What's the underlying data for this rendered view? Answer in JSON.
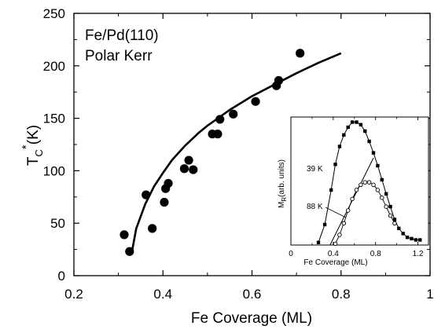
{
  "chart_data": [
    {
      "type": "scatter",
      "annotations": [
        "Fe/Pd(110)",
        "Polar Kerr"
      ],
      "xlabel": "Fe Coverage (ML)",
      "ylabel": "T",
      "ylabel_sub": "C",
      "ylabel_sup": "*",
      "ylabel_unit": "(K)",
      "xlim": [
        0.2,
        1.0
      ],
      "ylim": [
        0,
        250
      ],
      "xticks": [
        0.2,
        0.4,
        0.6,
        0.8,
        1.0
      ],
      "xtick_labels": [
        "0.2",
        "0.4",
        "0.6",
        "0.8",
        "1"
      ],
      "yticks": [
        0,
        50,
        100,
        150,
        200,
        250
      ],
      "ytick_labels": [
        "0",
        "50",
        "100",
        "150",
        "200",
        "250"
      ],
      "grid": false,
      "series": [
        {
          "marker": "filled-circle",
          "x": [
            0.313,
            0.325,
            0.362,
            0.376,
            0.403,
            0.406,
            0.412,
            0.448,
            0.458,
            0.468,
            0.511,
            0.523,
            0.528,
            0.558,
            0.608,
            0.655,
            0.66,
            0.708
          ],
          "y": [
            39,
            23,
            77,
            45,
            70,
            83,
            88,
            102,
            110,
            101,
            135,
            135,
            149,
            154,
            166,
            181,
            186,
            212
          ]
        },
        {
          "type": "line",
          "x": [
            0.33,
            0.34,
            0.36,
            0.38,
            0.4,
            0.42,
            0.45,
            0.48,
            0.5,
            0.55,
            0.6,
            0.65,
            0.7,
            0.75,
            0.8
          ],
          "y": [
            22,
            45,
            68,
            85,
            98,
            110,
            124,
            136,
            143,
            158,
            171,
            182,
            193,
            203,
            212
          ]
        }
      ]
    },
    {
      "type": "scatter",
      "inset": true,
      "xlabel": "Fe Coverage (ML)",
      "ylabel": "M",
      "ylabel_sub": "R",
      "ylabel_unit": "(arb. units)",
      "xlim": [
        0,
        1.3
      ],
      "ylim": [
        0,
        1.0
      ],
      "xticks": [
        0,
        0.4,
        0.8,
        1.2
      ],
      "xtick_labels": [
        "0",
        "0.4",
        "0.8",
        "1.2"
      ],
      "grid": false,
      "series": [
        {
          "name": "39 K",
          "marker": "filled-square",
          "x": [
            0.26,
            0.32,
            0.38,
            0.42,
            0.46,
            0.5,
            0.54,
            0.58,
            0.62,
            0.66,
            0.7,
            0.74,
            0.78,
            0.82,
            0.86,
            0.9,
            0.94,
            0.98,
            1.02,
            1.06,
            1.1,
            1.14,
            1.18,
            1.22
          ],
          "y": [
            0.02,
            0.16,
            0.43,
            0.63,
            0.77,
            0.86,
            0.92,
            0.96,
            0.96,
            0.94,
            0.89,
            0.81,
            0.72,
            0.62,
            0.51,
            0.4,
            0.3,
            0.2,
            0.13,
            0.09,
            0.06,
            0.05,
            0.04,
            0.04
          ]
        },
        {
          "name": "88 K",
          "marker": "open-circle",
          "x": [
            0.42,
            0.46,
            0.5,
            0.54,
            0.58,
            0.62,
            0.66,
            0.7,
            0.74,
            0.78,
            0.82,
            0.86,
            0.9,
            0.94,
            0.98
          ],
          "y": [
            0.01,
            0.08,
            0.17,
            0.27,
            0.36,
            0.43,
            0.47,
            0.49,
            0.49,
            0.47,
            0.43,
            0.37,
            0.3,
            0.23,
            0.17
          ]
        },
        {
          "type": "line",
          "x": [
            0.37,
            0.78
          ],
          "y": [
            0.0,
            0.68
          ]
        }
      ]
    }
  ]
}
